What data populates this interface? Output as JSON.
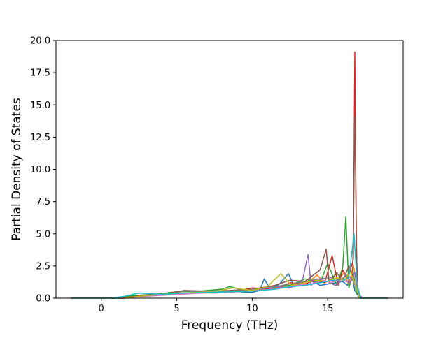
{
  "chart_data": {
    "type": "line",
    "title": "",
    "xlabel": "Frequency (THz)",
    "ylabel": "Partial Density of States",
    "xlim": [
      -3.0,
      20.0
    ],
    "ylim": [
      0.0,
      20.0
    ],
    "xticks": [
      0,
      5,
      10,
      15
    ],
    "xtick_labels": [
      "0",
      "5",
      "10",
      "15"
    ],
    "yticks": [
      0.0,
      2.5,
      5.0,
      7.5,
      10.0,
      12.5,
      15.0,
      17.5,
      20.0
    ],
    "ytick_labels": [
      "0.0",
      "2.5",
      "5.0",
      "7.5",
      "10.0",
      "12.5",
      "15.0",
      "17.5",
      "20.0"
    ],
    "grid": false,
    "legend": "none",
    "series": [
      {
        "color": "#1f77b4",
        "x": [
          -2.0,
          0.5,
          1.5,
          3.0,
          4.5,
          6.0,
          7.5,
          9.0,
          10.0,
          10.5,
          10.8,
          11.2,
          11.8,
          12.4,
          12.8,
          13.4,
          14.0,
          14.5,
          15.0,
          15.5,
          16.0,
          16.3,
          16.6,
          16.8,
          17.1,
          19.0
        ],
        "y": [
          0.0,
          0.0,
          0.12,
          0.25,
          0.35,
          0.4,
          0.5,
          0.5,
          0.45,
          0.6,
          1.5,
          0.7,
          1.1,
          1.9,
          0.9,
          1.2,
          1.3,
          1.0,
          1.1,
          1.2,
          1.3,
          1.0,
          1.8,
          0.6,
          0.0,
          0.0
        ]
      },
      {
        "color": "#ff7f0e",
        "x": [
          -2.0,
          1.0,
          2.5,
          4.0,
          5.5,
          7.0,
          8.5,
          10.0,
          11.5,
          12.5,
          13.2,
          13.8,
          14.3,
          14.8,
          15.3,
          15.8,
          16.1,
          16.4,
          16.7,
          16.9,
          17.2,
          19.0
        ],
        "y": [
          0.0,
          0.0,
          0.15,
          0.3,
          0.35,
          0.45,
          0.5,
          0.55,
          0.8,
          1.0,
          1.2,
          1.3,
          1.8,
          1.2,
          1.5,
          1.6,
          2.0,
          1.0,
          2.6,
          1.2,
          0.0,
          0.0
        ]
      },
      {
        "color": "#2ca02c",
        "x": [
          -2.0,
          1.0,
          2.0,
          3.5,
          5.0,
          6.5,
          8.0,
          8.5,
          9.5,
          11.0,
          12.5,
          13.5,
          14.5,
          15.0,
          15.6,
          16.0,
          16.2,
          16.4,
          16.7,
          16.9,
          17.2,
          19.0
        ],
        "y": [
          0.0,
          0.0,
          0.2,
          0.3,
          0.5,
          0.55,
          0.7,
          0.9,
          0.6,
          0.8,
          1.0,
          1.5,
          1.2,
          2.7,
          1.0,
          2.4,
          6.3,
          0.8,
          2.0,
          0.5,
          0.0,
          0.0
        ]
      },
      {
        "color": "#d62728",
        "x": [
          -2.0,
          1.5,
          3.0,
          4.5,
          6.0,
          7.5,
          9.0,
          10.0,
          11.5,
          12.5,
          13.5,
          14.2,
          14.8,
          15.3,
          15.7,
          16.0,
          16.3,
          16.55,
          16.7,
          16.8,
          16.9,
          17.0,
          17.3,
          19.0
        ],
        "y": [
          0.0,
          0.0,
          0.25,
          0.3,
          0.4,
          0.5,
          0.55,
          0.8,
          0.7,
          1.2,
          1.1,
          1.4,
          1.2,
          3.3,
          1.0,
          2.2,
          1.5,
          2.4,
          3.0,
          19.1,
          4.0,
          0.4,
          0.0,
          0.0
        ]
      },
      {
        "color": "#9467bd",
        "x": [
          -2.0,
          1.5,
          3.0,
          4.5,
          6.0,
          7.5,
          9.0,
          10.5,
          11.5,
          12.5,
          13.3,
          13.7,
          13.9,
          14.3,
          15.0,
          15.5,
          16.0,
          16.5,
          16.8,
          17.0,
          17.3,
          19.0
        ],
        "y": [
          0.0,
          0.0,
          0.2,
          0.3,
          0.45,
          0.4,
          0.5,
          0.7,
          0.9,
          0.8,
          1.2,
          3.4,
          1.0,
          1.5,
          1.3,
          1.0,
          1.4,
          1.2,
          2.0,
          0.4,
          0.0,
          0.0
        ]
      },
      {
        "color": "#8c564b",
        "x": [
          -2.0,
          1.5,
          3.0,
          4.5,
          5.5,
          7.0,
          8.5,
          10.0,
          11.5,
          12.5,
          13.5,
          14.5,
          14.9,
          15.1,
          15.6,
          16.0,
          16.4,
          16.65,
          16.8,
          16.95,
          17.2,
          19.0
        ],
        "y": [
          0.0,
          0.0,
          0.2,
          0.4,
          0.6,
          0.55,
          0.6,
          0.7,
          1.0,
          1.4,
          1.3,
          2.2,
          3.8,
          1.2,
          2.0,
          1.3,
          2.5,
          1.5,
          14.1,
          1.0,
          0.0,
          0.0
        ]
      },
      {
        "color": "#e377c2",
        "x": [
          -2.0,
          1.5,
          3.0,
          4.5,
          6.0,
          7.5,
          9.0,
          10.5,
          12.0,
          13.0,
          14.0,
          14.7,
          15.2,
          15.8,
          16.3,
          16.6,
          16.9,
          17.2,
          19.0
        ],
        "y": [
          0.0,
          0.0,
          0.15,
          0.25,
          0.35,
          0.45,
          0.5,
          0.6,
          0.8,
          1.0,
          1.1,
          1.4,
          1.2,
          1.5,
          1.3,
          1.6,
          0.8,
          0.0,
          0.0
        ]
      },
      {
        "color": "#7f7f7f",
        "x": [
          -2.0,
          1.5,
          3.0,
          4.5,
          5.5,
          7.0,
          8.5,
          10.0,
          11.5,
          12.5,
          13.5,
          14.5,
          15.2,
          15.8,
          16.3,
          16.6,
          16.9,
          17.2,
          19.0
        ],
        "y": [
          0.0,
          0.0,
          0.2,
          0.3,
          0.55,
          0.5,
          0.55,
          0.65,
          0.9,
          1.1,
          1.3,
          1.5,
          1.6,
          1.4,
          1.8,
          1.5,
          1.0,
          0.0,
          0.0
        ]
      },
      {
        "color": "#bcbd22",
        "x": [
          -2.0,
          1.5,
          3.0,
          4.5,
          6.0,
          7.5,
          8.7,
          10.0,
          11.0,
          11.9,
          12.6,
          13.5,
          14.3,
          15.0,
          15.6,
          16.1,
          16.5,
          16.8,
          17.1,
          19.0
        ],
        "y": [
          0.0,
          0.0,
          0.2,
          0.35,
          0.45,
          0.5,
          0.8,
          0.6,
          0.9,
          1.9,
          1.0,
          1.2,
          1.4,
          1.3,
          1.6,
          1.4,
          2.0,
          1.2,
          0.0,
          0.0
        ]
      },
      {
        "color": "#17becf",
        "x": [
          -2.0,
          1.0,
          2.5,
          4.0,
          5.5,
          7.0,
          8.5,
          10.0,
          11.5,
          12.5,
          13.5,
          14.5,
          15.3,
          15.9,
          16.4,
          16.75,
          16.95,
          17.2,
          19.0
        ],
        "y": [
          0.0,
          0.0,
          0.4,
          0.3,
          0.4,
          0.45,
          0.5,
          0.55,
          0.7,
          0.9,
          1.0,
          1.2,
          1.4,
          1.3,
          1.6,
          5.0,
          1.0,
          0.0,
          0.0
        ]
      }
    ]
  }
}
